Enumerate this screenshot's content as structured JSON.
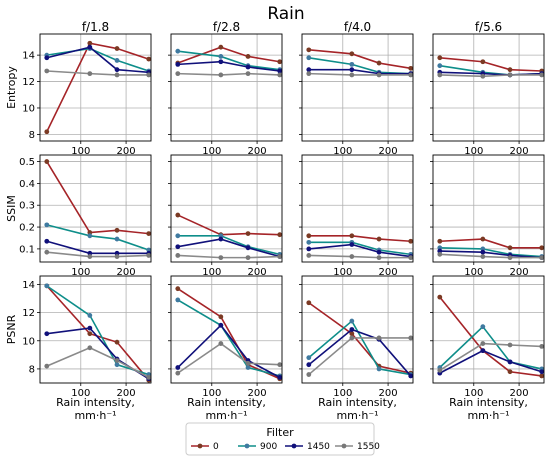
{
  "chart_data": {
    "type": "line",
    "title": "Rain",
    "column_titles": [
      "f/1.8",
      "f/2.8",
      "f/4.0",
      "f/5.6"
    ],
    "row_ylabels": [
      "Entropy",
      "SSIM",
      "PSNR"
    ],
    "xlabel_line1": "Rain intensity,",
    "xlabel_line2": "mm·h⁻¹",
    "x": [
      25,
      120,
      180,
      250
    ],
    "xlim": [
      10,
      255
    ],
    "xticks": [
      100,
      200
    ],
    "ylims": [
      [
        7.5,
        15.6
      ],
      [
        0.04,
        0.53
      ],
      [
        7.0,
        14.6
      ]
    ],
    "yticks": [
      [
        8,
        10,
        12,
        14
      ],
      [
        0.1,
        0.2,
        0.3,
        0.4,
        0.5
      ],
      [
        8,
        10,
        12,
        14
      ]
    ],
    "yticklabels": [
      [
        "8",
        "10",
        "12",
        "14"
      ],
      [
        "0.1",
        "0.2",
        "0.3",
        "0.4",
        "0.5"
      ],
      [
        "8",
        "10",
        "12",
        "14"
      ]
    ],
    "legend": {
      "title": "Filter",
      "location": "bottom-center"
    },
    "series_meta": [
      {
        "name": "0",
        "color": "#a52428",
        "marker_color": "#7b3a24"
      },
      {
        "name": "900",
        "color": "#0e8e8a",
        "marker_color": "#3f7aa0"
      },
      {
        "name": "1450",
        "color": "#10107a",
        "marker_color": "#10107a"
      },
      {
        "name": "1550",
        "color": "#8a8a8a",
        "marker_color": "#787878"
      }
    ],
    "panels": [
      [
        [
          [
            8.2,
            14.9,
            14.5,
            13.7
          ],
          [
            14.0,
            14.5,
            13.6,
            12.8
          ],
          [
            13.8,
            14.6,
            12.9,
            12.7
          ],
          [
            12.8,
            12.6,
            12.5,
            12.5
          ]
        ],
        [
          [
            13.4,
            14.6,
            13.9,
            13.5
          ],
          [
            14.3,
            13.9,
            13.2,
            12.9
          ],
          [
            13.3,
            13.5,
            13.1,
            12.8
          ],
          [
            12.6,
            12.5,
            12.6,
            12.5
          ]
        ],
        [
          [
            14.4,
            14.1,
            13.4,
            13.0
          ],
          [
            13.8,
            13.3,
            12.7,
            12.6
          ],
          [
            12.9,
            12.9,
            12.6,
            12.6
          ],
          [
            12.6,
            12.5,
            12.5,
            12.5
          ]
        ],
        [
          [
            13.8,
            13.5,
            12.9,
            12.8
          ],
          [
            13.2,
            12.7,
            12.5,
            12.6
          ],
          [
            12.7,
            12.6,
            12.5,
            12.6
          ],
          [
            12.5,
            12.4,
            12.5,
            12.5
          ]
        ]
      ],
      [
        [
          [
            0.5,
            0.175,
            0.185,
            0.17
          ],
          [
            0.21,
            0.16,
            0.145,
            0.095
          ],
          [
            0.135,
            0.08,
            0.08,
            0.08
          ],
          [
            0.085,
            0.065,
            0.065,
            0.07
          ]
        ],
        [
          [
            0.255,
            0.165,
            0.17,
            0.165
          ],
          [
            0.16,
            0.16,
            0.11,
            0.075
          ],
          [
            0.11,
            0.145,
            0.105,
            0.065
          ],
          [
            0.07,
            0.06,
            0.06,
            0.065
          ]
        ],
        [
          [
            0.16,
            0.16,
            0.145,
            0.135
          ],
          [
            0.13,
            0.13,
            0.095,
            0.075
          ],
          [
            0.1,
            0.12,
            0.085,
            0.065
          ],
          [
            0.07,
            0.065,
            0.06,
            0.06
          ]
        ],
        [
          [
            0.135,
            0.145,
            0.105,
            0.105
          ],
          [
            0.105,
            0.1,
            0.075,
            0.065
          ],
          [
            0.09,
            0.085,
            0.07,
            0.06
          ],
          [
            0.075,
            0.065,
            0.06,
            0.06
          ]
        ]
      ],
      [
        [
          [
            13.9,
            10.5,
            9.9,
            7.2
          ],
          [
            13.9,
            11.8,
            8.3,
            7.6
          ],
          [
            10.5,
            10.9,
            8.7,
            7.3
          ],
          [
            8.2,
            9.5,
            8.6,
            7.4
          ]
        ],
        [
          [
            13.7,
            11.7,
            8.3,
            7.3
          ],
          [
            12.9,
            11.1,
            8.1,
            7.5
          ],
          [
            8.1,
            11.1,
            8.6,
            7.4
          ],
          [
            7.7,
            9.8,
            8.4,
            8.3
          ]
        ],
        [
          [
            12.7,
            10.5,
            8.2,
            7.7
          ],
          [
            8.8,
            11.4,
            8.0,
            7.6
          ],
          [
            8.3,
            10.8,
            10.1,
            7.5
          ],
          [
            7.6,
            10.2,
            10.2,
            10.2
          ]
        ],
        [
          [
            13.1,
            9.3,
            7.8,
            7.5
          ],
          [
            8.1,
            11.0,
            8.5,
            8.0
          ],
          [
            7.7,
            9.3,
            8.5,
            7.8
          ],
          [
            7.9,
            9.8,
            9.7,
            9.6
          ]
        ]
      ]
    ]
  }
}
